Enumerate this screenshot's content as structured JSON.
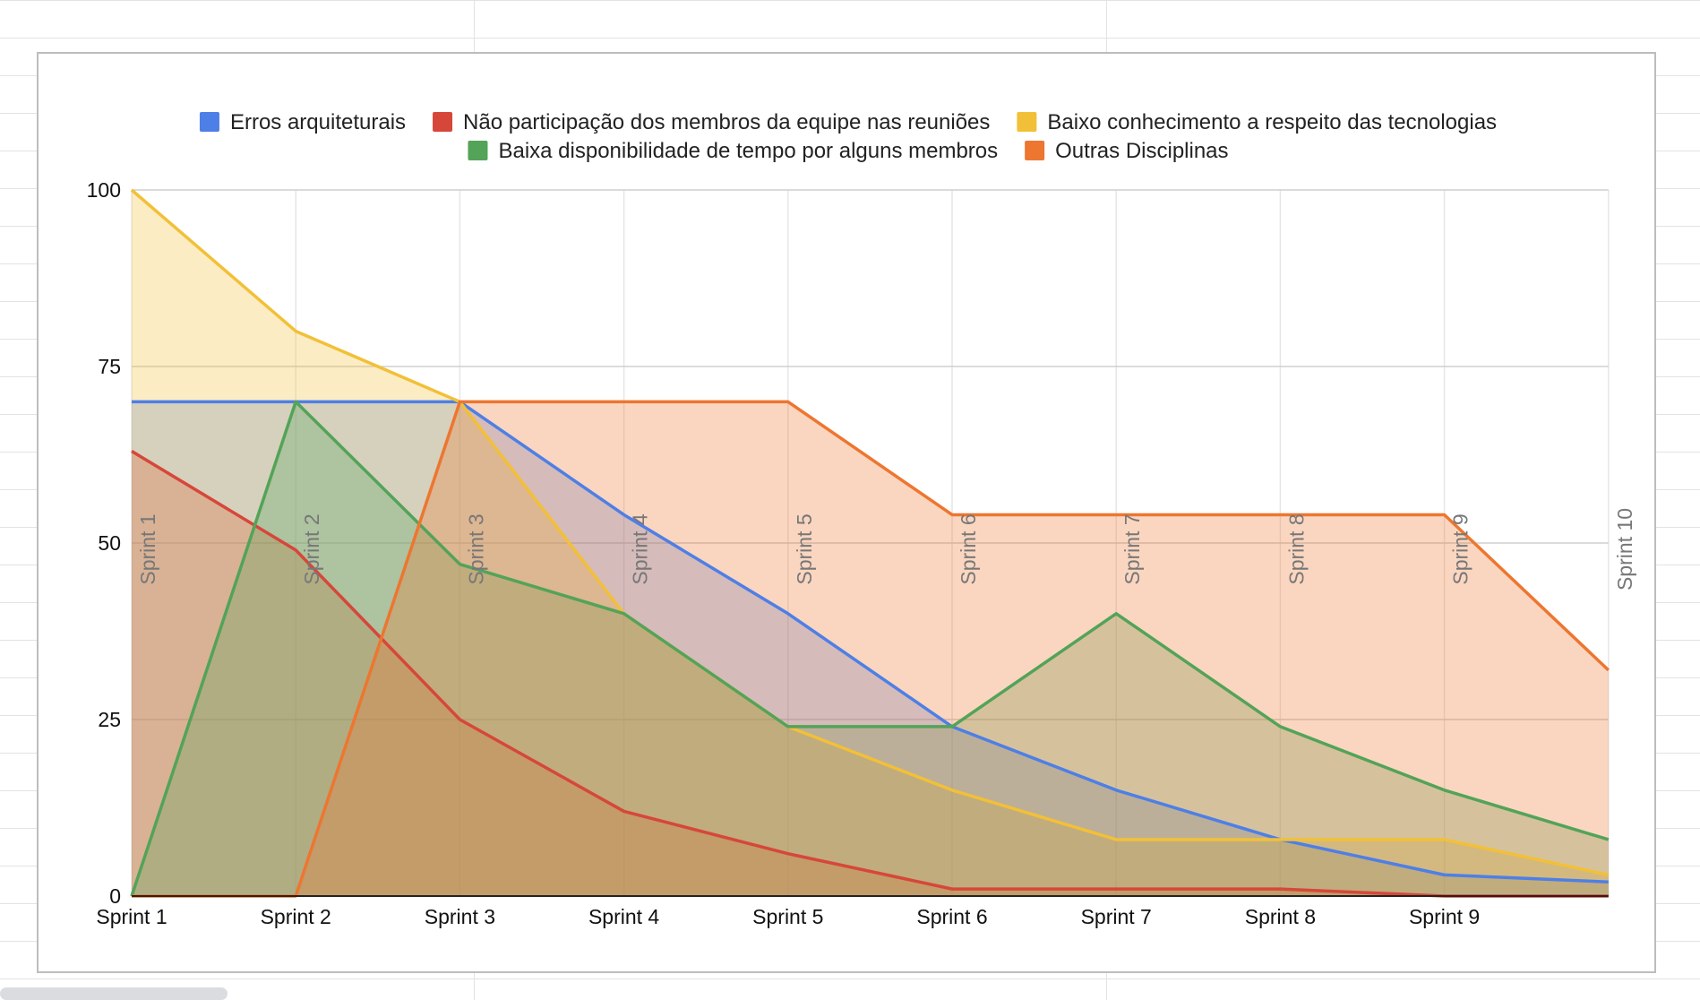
{
  "chart_data": {
    "type": "area",
    "categories": [
      "Sprint 1",
      "Sprint 2",
      "Sprint 3",
      "Sprint 4",
      "Sprint 5",
      "Sprint 6",
      "Sprint 7",
      "Sprint 8",
      "Sprint 9",
      "Sprint 10"
    ],
    "annotations": [
      "Sprint 1",
      "Sprint 2",
      "Sprint 3",
      "Sprint 4",
      "Sprint 5",
      "Sprint 6",
      "Sprint 7",
      "Sprint 8",
      "Sprint 9",
      "Sprint 10"
    ],
    "ylim": [
      0,
      100
    ],
    "yticks": [
      0,
      25,
      50,
      75,
      100
    ],
    "grid": true,
    "legend_position": "top",
    "series": [
      {
        "name": "Erros arquiteturais",
        "color": "#4e7fe6",
        "values": [
          70,
          70,
          70,
          54,
          40,
          24,
          15,
          8,
          3,
          2
        ]
      },
      {
        "name": "Não participação dos membros da equipe nas reuniões",
        "color": "#d6473a",
        "values": [
          63,
          49,
          25,
          12,
          6,
          1,
          1,
          1,
          0,
          0
        ]
      },
      {
        "name": "Baixo conhecimento a respeito das tecnologias",
        "color": "#f2c038",
        "values": [
          100,
          80,
          70,
          40,
          24,
          15,
          8,
          8,
          8,
          3
        ]
      },
      {
        "name": "Baixa disponibilidade de tempo por alguns membros",
        "color": "#53a358",
        "values": [
          0,
          70,
          47,
          40,
          24,
          24,
          40,
          24,
          15,
          8
        ]
      },
      {
        "name": "Outras Disciplinas",
        "color": "#ed7630",
        "values": [
          0,
          0,
          70,
          70,
          70,
          54,
          54,
          54,
          54,
          32
        ]
      }
    ]
  }
}
